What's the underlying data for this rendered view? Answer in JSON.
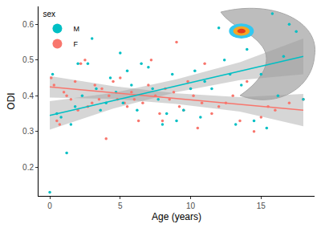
{
  "chart_data": {
    "type": "scatter",
    "x_label": "Age (years)",
    "y_label": "ODI",
    "legend_title": "sex",
    "legend": "top-left",
    "grid": false,
    "xlim": [
      -0.8,
      18.8
    ],
    "ylim": [
      0.12,
      0.65
    ],
    "xticks": [
      0,
      5,
      10,
      15
    ],
    "yticks": [
      0.2,
      0.3,
      0.4,
      0.5,
      0.6
    ],
    "series": [
      {
        "name": "F",
        "color": "#F8766D",
        "x": [
          0.1,
          0.3,
          0.5,
          0.7,
          1.0,
          1.2,
          1.5,
          1.8,
          2.0,
          2.2,
          2.5,
          2.7,
          3.0,
          3.2,
          3.5,
          3.7,
          4.0,
          4.2,
          4.5,
          4.8,
          5.0,
          5.3,
          5.5,
          5.8,
          6.0,
          6.3,
          6.6,
          7.0,
          7.2,
          7.5,
          7.8,
          8.0,
          8.2,
          8.5,
          8.8,
          9.0,
          9.2,
          9.5,
          9.8,
          10.2,
          10.5,
          10.8,
          11.0,
          11.5,
          12.0,
          12.5,
          13.0,
          13.5,
          14.0,
          14.5,
          15.0,
          15.5,
          16.0,
          17.0,
          18.0
        ],
        "values": [
          0.45,
          0.43,
          0.33,
          0.32,
          0.41,
          0.4,
          0.39,
          0.44,
          0.36,
          0.49,
          0.5,
          0.37,
          0.38,
          0.43,
          0.39,
          0.42,
          0.28,
          0.4,
          0.44,
          0.39,
          0.45,
          0.38,
          0.37,
          0.41,
          0.39,
          0.33,
          0.38,
          0.43,
          0.5,
          0.4,
          0.35,
          0.33,
          0.42,
          0.39,
          0.41,
          0.55,
          0.37,
          0.36,
          0.44,
          0.4,
          0.31,
          0.38,
          0.49,
          0.35,
          0.37,
          0.38,
          0.4,
          0.33,
          0.44,
          0.3,
          0.34,
          0.37,
          0.36,
          0.38,
          0.39
        ],
        "fit_x": [
          0,
          4.5,
          9,
          13.5,
          18
        ],
        "fit": [
          0.425,
          0.409,
          0.392,
          0.376,
          0.36
        ],
        "ci_lower": [
          0.395,
          0.391,
          0.377,
          0.356,
          0.315
        ],
        "ci_upper": [
          0.455,
          0.427,
          0.407,
          0.396,
          0.405
        ]
      },
      {
        "name": "M",
        "color": "#00BFC4",
        "x": [
          0.0,
          0.2,
          0.5,
          0.8,
          1.2,
          1.5,
          1.8,
          2.0,
          2.3,
          2.7,
          3.0,
          3.3,
          3.6,
          4.0,
          4.3,
          4.7,
          5.0,
          5.2,
          5.5,
          5.8,
          6.2,
          6.5,
          7.0,
          7.3,
          7.7,
          8.0,
          8.3,
          8.7,
          9.0,
          9.5,
          10.0,
          10.3,
          10.7,
          11.0,
          11.5,
          12.0,
          12.4,
          12.8,
          13.2,
          13.6,
          14.0,
          14.5,
          15.0,
          15.4,
          15.8,
          16.2,
          16.6,
          17.0,
          17.5,
          18.0
        ],
        "values": [
          0.13,
          0.46,
          0.35,
          0.34,
          0.24,
          0.32,
          0.37,
          0.49,
          0.4,
          0.49,
          0.56,
          0.42,
          0.36,
          0.38,
          0.45,
          0.41,
          0.52,
          0.38,
          0.47,
          0.43,
          0.36,
          0.49,
          0.48,
          0.42,
          0.39,
          0.32,
          0.35,
          0.46,
          0.33,
          0.36,
          0.42,
          0.47,
          0.34,
          0.44,
          0.42,
          0.59,
          0.5,
          0.46,
          0.32,
          0.43,
          0.53,
          0.33,
          0.46,
          0.31,
          0.63,
          0.4,
          0.51,
          0.6,
          0.58,
          0.39
        ],
        "fit_x": [
          0,
          4.5,
          9,
          13.5,
          18
        ],
        "fit": [
          0.345,
          0.386,
          0.428,
          0.469,
          0.51
        ],
        "ci_lower": [
          0.305,
          0.364,
          0.41,
          0.444,
          0.46
        ],
        "ci_upper": [
          0.385,
          0.408,
          0.446,
          0.494,
          0.56
        ]
      }
    ]
  }
}
